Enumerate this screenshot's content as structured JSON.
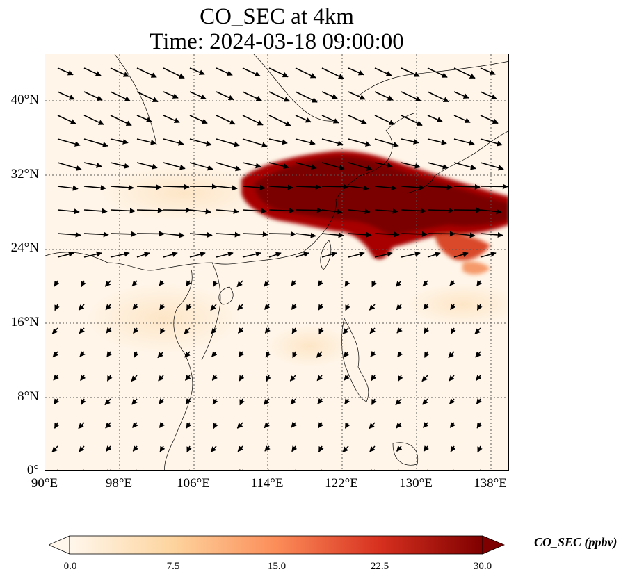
{
  "title": {
    "line1": "CO_SEC at 4km",
    "line2": "Time: 2024-03-18 09:00:00"
  },
  "map": {
    "extent_lon": [
      90,
      140
    ],
    "extent_lat": [
      0,
      45
    ],
    "gridlines": "dotted",
    "lon_ticks": [
      "90°E",
      "98°E",
      "106°E",
      "114°E",
      "122°E",
      "130°E",
      "138°E"
    ],
    "lat_ticks": [
      "0°",
      "8°N",
      "16°N",
      "24°N",
      "32°N",
      "40°N"
    ],
    "field": "CO_SEC",
    "plume_region": "East China Sea to south of Japan, approx. 110–140°E, 22–35°N",
    "wind_vectors": "strong westerlies north of 24°N, weak northeasterlies to the south"
  },
  "colorbar": {
    "label": "CO_SEC (ppbv)",
    "ticks": [
      "0.0",
      "7.5",
      "15.0",
      "22.5",
      "30.0"
    ],
    "min": 0,
    "max": 30,
    "colormap": "OrRd",
    "colors": [
      "#fff7ec",
      "#fdd49e",
      "#fc8d59",
      "#d7301f",
      "#7f0000"
    ]
  }
}
